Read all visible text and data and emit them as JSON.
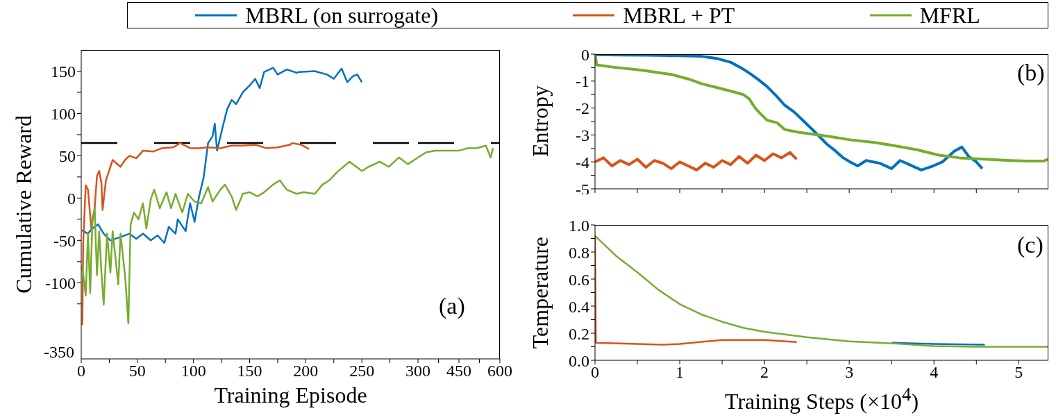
{
  "chart_data": [
    {
      "type": "line",
      "ylabel": "Cumulative Reward",
      "xlabel": "Training Episode",
      "legend": "top",
      "xlim": [
        0,
        300
      ],
      "ylim": [
        -190,
        175
      ],
      "xticks": [
        0,
        {
          "value": 25,
          "label": null
        },
        50,
        {
          "value": 75,
          "label": null
        },
        100,
        {
          "value": 125,
          "label": null
        },
        150,
        {
          "value": 175,
          "label": null
        },
        200,
        {
          "value": 225,
          "label": null
        },
        250,
        {
          "value": 275,
          "label": null
        },
        300
      ],
      "yticks": [
        -100,
        {
          "value": -125,
          "label": null
        },
        {
          "value": -75,
          "label": null
        },
        -50,
        {
          "value": -25,
          "label": null
        },
        0,
        {
          "value": 25,
          "label": null
        },
        50,
        {
          "value": 75,
          "label": null
        },
        100,
        {
          "value": 125,
          "label": null
        },
        150
      ],
      "ref_lines": [
        {
          "axis": "y",
          "value": 65,
          "color": "#000000",
          "line_style": "dashed"
        }
      ],
      "series": [
        {
          "name": "MBRL (on surrogate)",
          "color": "#0072bd",
          "x": [
            0.6,
            5.8,
            9.9,
            15,
            20,
            26,
            35,
            43,
            49,
            55,
            62,
            68,
            74,
            78,
            84,
            86,
            93,
            97,
            101,
            105,
            109,
            113,
            117,
            119,
            121,
            126,
            130,
            134,
            138,
            144,
            150,
            155,
            159,
            163,
            171,
            175,
            183,
            192,
            194,
            208,
            219,
            225,
            232,
            237,
            242,
            246,
            250
          ],
          "values": [
            -38,
            -42,
            -36,
            -31,
            -42,
            -50,
            -46,
            -42,
            -48,
            -42,
            -50,
            -44,
            -53,
            -34,
            -42,
            -25,
            -39,
            -6,
            -28,
            2,
            24,
            65,
            73,
            88,
            56,
            84,
            105,
            116,
            111,
            125,
            133,
            141,
            130,
            149,
            154,
            146,
            152,
            148,
            149,
            150,
            146,
            141,
            153,
            137,
            144,
            146,
            137
          ]
        },
        {
          "name": "MBRL + PT",
          "color": "#d95319",
          "x": [
            1.0,
            1.7,
            4,
            6,
            9,
            12,
            14,
            16,
            18,
            19,
            22,
            28,
            35,
            39,
            43,
            49,
            55,
            64,
            72,
            82,
            88,
            97,
            105,
            113,
            124,
            134,
            144,
            155,
            165,
            175,
            186,
            188,
            196,
            203
          ],
          "values": [
            -150,
            -55,
            15,
            10,
            -36,
            -12,
            26,
            32,
            18,
            -14,
            21,
            45,
            37,
            45,
            50,
            47,
            56,
            55,
            59,
            60,
            65,
            59,
            59,
            60,
            59,
            62,
            62,
            63,
            59,
            60,
            63,
            65,
            63,
            58
          ]
        },
        {
          "name": "MFRL",
          "color": "#77ac30",
          "x": [
            0.6,
            2,
            4,
            6,
            8,
            10,
            12,
            14,
            16,
            18,
            20,
            23,
            26,
            28,
            31,
            33,
            35,
            39,
            42,
            44,
            47,
            51,
            55,
            58,
            62,
            65,
            70,
            76,
            80,
            84,
            90,
            95,
            101,
            107,
            113,
            117,
            124,
            128,
            134,
            138,
            144,
            150,
            157,
            163,
            171,
            177,
            183,
            192,
            198,
            208,
            215,
            221,
            229,
            239,
            250,
            256,
            266,
            274,
            283,
            291,
            300
          ],
          "values": [
            -80,
            -93,
            -115,
            -42,
            -112,
            -23,
            -12,
            -91,
            -39,
            -88,
            -126,
            -42,
            -88,
            -39,
            -77,
            -102,
            -42,
            -91,
            -148,
            -31,
            -17,
            -25,
            -6,
            -36,
            -1,
            10,
            -12,
            7,
            -12,
            5,
            -17,
            5,
            -4,
            -6,
            13,
            -4,
            10,
            16,
            2,
            -14,
            5,
            7,
            2,
            7,
            16,
            21,
            10,
            5,
            7,
            5,
            16,
            21,
            32,
            43,
            32,
            37,
            43,
            37,
            48,
            40,
            48
          ]
        }
      ]
    },
    {
      "type": "line",
      "tick_labels": "x",
      "xlim": [
        300,
        600
      ],
      "ylim": [
        -190,
        175
      ],
      "annotations": [
        "(a)"
      ],
      "xticks": [
        {
          "value": 375,
          "label": null
        },
        450,
        {
          "value": 525,
          "label": null
        },
        600
      ],
      "ref_lines": [
        {
          "axis": "y",
          "value": 65,
          "color": "#000000",
          "line_style": "dashed"
        }
      ],
      "series": [
        {
          "color": "#77ac30",
          "x": [
            300,
            330,
            363,
            397,
            448,
            482,
            515,
            549,
            566,
            575
          ],
          "values": [
            48,
            54,
            56,
            56,
            56,
            59,
            59,
            62,
            48,
            59
          ]
        }
      ]
    },
    {
      "type": "other",
      "annotations": [
        "-350"
      ]
    },
    {
      "type": "line",
      "ylabel": "Entropy",
      "tick_labels": "y",
      "xlim": [
        0,
        5.35
      ],
      "ylim": [
        -5,
        0
      ],
      "annotations": [
        "(b)"
      ],
      "yticks": [
        0,
        {
          "value": -0.5,
          "label": null
        },
        -1,
        {
          "value": -1.5,
          "label": null
        },
        -2,
        {
          "value": -2.5,
          "label": null
        },
        -3,
        {
          "value": -3.5,
          "label": null
        },
        -4,
        {
          "value": -4.5,
          "label": null
        },
        -5
      ],
      "xticks": [
        0,
        0.5,
        1,
        1.5,
        2,
        2.5,
        3,
        3.5,
        4,
        4.5,
        5
      ],
      "series": [
        {
          "color": "#d95319",
          "x": [
            0,
            0.1,
            0.2,
            0.3,
            0.4,
            0.5,
            0.6,
            0.7,
            0.8,
            0.9,
            1.0,
            1.1,
            1.2,
            1.3,
            1.4,
            1.5,
            1.6,
            1.7,
            1.8,
            1.9,
            2.0,
            2.1,
            2.2,
            2.3,
            2.38
          ],
          "values": [
            -4.0,
            -3.85,
            -4.15,
            -3.95,
            -4.1,
            -3.9,
            -4.2,
            -3.95,
            -4.05,
            -4.25,
            -4.0,
            -4.15,
            -4.3,
            -4.05,
            -4.2,
            -3.95,
            -4.1,
            -3.8,
            -4.05,
            -3.75,
            -3.95,
            -3.7,
            -3.85,
            -3.65,
            -3.9
          ]
        },
        {
          "color": "#0072bd",
          "x": [
            0,
            0.3,
            0.6,
            0.9,
            1.26,
            1.45,
            1.6,
            1.72,
            1.82,
            1.93,
            2.03,
            2.14,
            2.24,
            2.35,
            2.45,
            2.55,
            2.63,
            2.74,
            2.84,
            2.93,
            3.01,
            3.1,
            3.2,
            3.36,
            3.5,
            3.6,
            3.71,
            3.85,
            3.99,
            4.1,
            4.24,
            4.33,
            4.41,
            4.5,
            4.57
          ],
          "values": [
            -0.02,
            -0.03,
            -0.04,
            -0.05,
            -0.08,
            -0.17,
            -0.3,
            -0.5,
            -0.7,
            -0.95,
            -1.2,
            -1.55,
            -1.9,
            -2.15,
            -2.45,
            -2.75,
            -3.0,
            -3.35,
            -3.6,
            -3.85,
            -4.0,
            -4.15,
            -3.95,
            -4.05,
            -4.25,
            -3.95,
            -4.1,
            -4.3,
            -4.15,
            -4.0,
            -3.6,
            -3.45,
            -3.8,
            -4.0,
            -4.25
          ]
        },
        {
          "color": "#77ac30",
          "x": [
            0,
            0.02,
            0.21,
            0.56,
            0.91,
            1.1,
            1.26,
            1.45,
            1.61,
            1.75,
            1.82,
            1.89,
            1.95,
            2.03,
            2.15,
            2.24,
            2.4,
            2.52,
            2.75,
            3.01,
            3.3,
            3.54,
            3.8,
            4.06,
            4.3,
            4.59,
            4.9,
            5.1,
            5.29,
            5.35
          ],
          "values": [
            0,
            -0.4,
            -0.48,
            -0.6,
            -0.76,
            -0.92,
            -1.1,
            -1.25,
            -1.38,
            -1.5,
            -1.66,
            -2.0,
            -2.2,
            -2.45,
            -2.55,
            -2.8,
            -2.9,
            -2.95,
            -3.05,
            -3.18,
            -3.28,
            -3.4,
            -3.55,
            -3.75,
            -3.85,
            -3.9,
            -3.95,
            -3.97,
            -3.97,
            -3.9
          ]
        }
      ]
    },
    {
      "type": "line",
      "ylabel": "Temperature",
      "xlabel": "Training Steps (×10$^{4}$)",
      "xlim": [
        0,
        5.35
      ],
      "ylim": [
        0,
        1
      ],
      "annotations": [
        "(c)"
      ],
      "yticks": [
        {
          "value": 0,
          "label": "0.0"
        },
        {
          "value": 0.1,
          "label": null
        },
        {
          "value": 0.2,
          "label": "0.2"
        },
        {
          "value": 0.3,
          "label": null
        },
        {
          "value": 0.4,
          "label": "0.4"
        },
        {
          "value": 0.5,
          "label": null
        },
        {
          "value": 0.6,
          "label": "0.6"
        },
        {
          "value": 0.7,
          "label": null
        },
        {
          "value": 0.8,
          "label": "0.8"
        },
        {
          "value": 0.9,
          "label": null
        },
        {
          "value": 1,
          "label": "1.0"
        }
      ],
      "xticks": [
        0,
        {
          "value": 0.5,
          "label": null
        },
        1,
        {
          "value": 1.5,
          "label": null
        },
        2,
        {
          "value": 2.5,
          "label": null
        },
        3,
        {
          "value": 3.5,
          "label": null
        },
        4,
        {
          "value": 4.5,
          "label": null
        },
        5
      ],
      "series": [
        {
          "color": "#0072bd",
          "x": [
            3.5,
            4,
            4.6
          ],
          "values": [
            0.13,
            0.12,
            0.115
          ]
        },
        {
          "color": "#77ac30",
          "x": [
            0,
            0.25,
            0.5,
            0.75,
            1,
            1.25,
            1.5,
            1.75,
            2,
            2.5,
            3,
            3.5,
            4,
            4.5,
            5.35
          ],
          "values": [
            0.92,
            0.77,
            0.65,
            0.52,
            0.415,
            0.34,
            0.285,
            0.24,
            0.21,
            0.17,
            0.14,
            0.125,
            0.105,
            0.1,
            0.1
          ]
        },
        {
          "color": "#d95319",
          "x": [
            0,
            0.01,
            0.8,
            1.0,
            1.5,
            2.0,
            2.38
          ],
          "values": [
            0.92,
            0.13,
            0.115,
            0.12,
            0.15,
            0.15,
            0.135
          ]
        }
      ]
    }
  ]
}
